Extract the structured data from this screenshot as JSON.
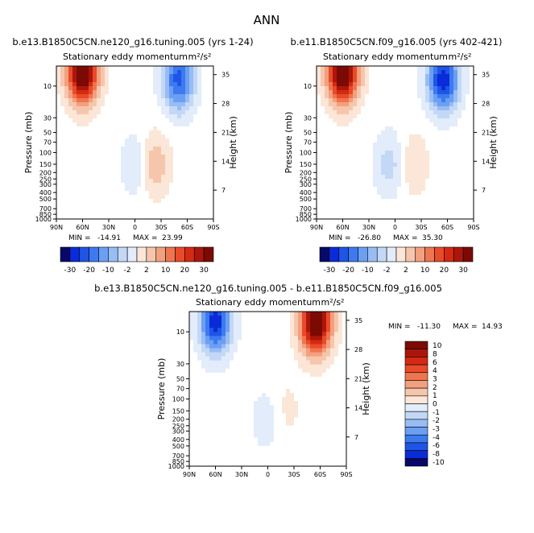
{
  "title": "ANN",
  "colors": {
    "blue_scale": [
      "#08086a",
      "#0a2bd8",
      "#1f55e6",
      "#3d7af0",
      "#6b9ff3",
      "#98bcf4",
      "#c3d8f6",
      "#e2ecfa"
    ],
    "red_scale": [
      "#fbe6d7",
      "#f6c6ac",
      "#f3a07e",
      "#ee7550",
      "#e94a2a",
      "#d42a12",
      "#ac160a",
      "#7c0a04"
    ],
    "neutral": "#ffffff"
  },
  "chart_data": [
    {
      "type": "heatmap",
      "case_title": "b.e13.B1850C5CN.ne120_g16.tuning.005 (yrs 1-24)",
      "subtitle": "Stationary eddy momentum",
      "units": "m²/s²",
      "ylabel": "Pressure (mb)",
      "ylabel_right": "Height (km)",
      "x_ticks": [
        "90N",
        "60N",
        "30N",
        "0",
        "30S",
        "60S",
        "90S"
      ],
      "x_range": [
        90,
        -90
      ],
      "y_range": [
        1000,
        5
      ],
      "y_ticks": [
        10,
        30,
        50,
        70,
        100,
        150,
        200,
        250,
        300,
        400,
        500,
        700,
        850,
        1000
      ],
      "height_ticks": [
        35,
        28,
        21,
        14,
        7
      ],
      "min_label": "MIN =",
      "min": "-14.91",
      "max_label": "MAX =",
      "max": "23.99",
      "colorbar_levels": [
        "-30",
        "-20",
        "-10",
        "-2",
        "2",
        "10",
        "20",
        "30"
      ],
      "features": [
        {
          "lat": 60,
          "p": 6,
          "value": 23.99
        },
        {
          "lat": -50,
          "p": 8,
          "value": -14.91
        },
        {
          "lat": -5,
          "p": 150,
          "value": -6
        },
        {
          "lat": -20,
          "p": 150,
          "value": 8
        }
      ]
    },
    {
      "type": "heatmap",
      "case_title": "b.e11.B1850C5CN.f09_g16.005 (yrs 402-421)",
      "subtitle": "Stationary eddy momentum",
      "units": "m²/s²",
      "ylabel": "Pressure (mb)",
      "ylabel_right": "Height (km)",
      "x_ticks": [
        "90N",
        "60N",
        "30N",
        "0",
        "30S",
        "60S",
        "90S"
      ],
      "x_range": [
        90,
        -90
      ],
      "y_range": [
        1000,
        5
      ],
      "y_ticks": [
        10,
        30,
        50,
        70,
        100,
        150,
        200,
        250,
        300,
        400,
        500,
        700,
        850,
        1000
      ],
      "height_ticks": [
        35,
        28,
        21,
        14,
        7
      ],
      "min_label": "MIN =",
      "min": "-26.80",
      "max_label": "MAX =",
      "max": "35.30",
      "colorbar_levels": [
        "-30",
        "-20",
        "-10",
        "-2",
        "2",
        "10",
        "20",
        "30"
      ],
      "features": [
        {
          "lat": 60,
          "p": 6,
          "value": 35.3
        },
        {
          "lat": -55,
          "p": 8,
          "value": -26.8
        },
        {
          "lat": 5,
          "p": 150,
          "value": -8
        },
        {
          "lat": -20,
          "p": 150,
          "value": 6
        }
      ]
    },
    {
      "type": "heatmap",
      "case_title": "b.e13.B1850C5CN.ne120_g16.tuning.005 - b.e11.B1850C5CN.f09_g16.005",
      "subtitle": "Stationary eddy momentum",
      "units": "m²/s²",
      "ylabel": "Pressure (mb)",
      "ylabel_right": "Height (km)",
      "x_ticks": [
        "90N",
        "60N",
        "30N",
        "0",
        "30S",
        "60S",
        "90S"
      ],
      "x_range": [
        90,
        -90
      ],
      "y_range": [
        1000,
        5
      ],
      "y_ticks": [
        10,
        30,
        50,
        70,
        100,
        150,
        200,
        250,
        300,
        400,
        500,
        700,
        850,
        1000
      ],
      "height_ticks": [
        35,
        28,
        21,
        14,
        7
      ],
      "min_label": "MIN =",
      "min": "-11.30",
      "max_label": "MAX =",
      "max": "14.93",
      "colorbar_levels": [
        "10",
        "8",
        "6",
        "4",
        "3",
        "2",
        "1",
        "0",
        "-1",
        "-2",
        "-3",
        "-4",
        "-6",
        "-8",
        "-10"
      ],
      "features": [
        {
          "lat": -55,
          "p": 7,
          "value": 14.93
        },
        {
          "lat": 60,
          "p": 7,
          "value": -11.3
        },
        {
          "lat": 0,
          "p": 200,
          "value": -2
        },
        {
          "lat": -20,
          "p": 150,
          "value": 1.5
        }
      ]
    }
  ]
}
